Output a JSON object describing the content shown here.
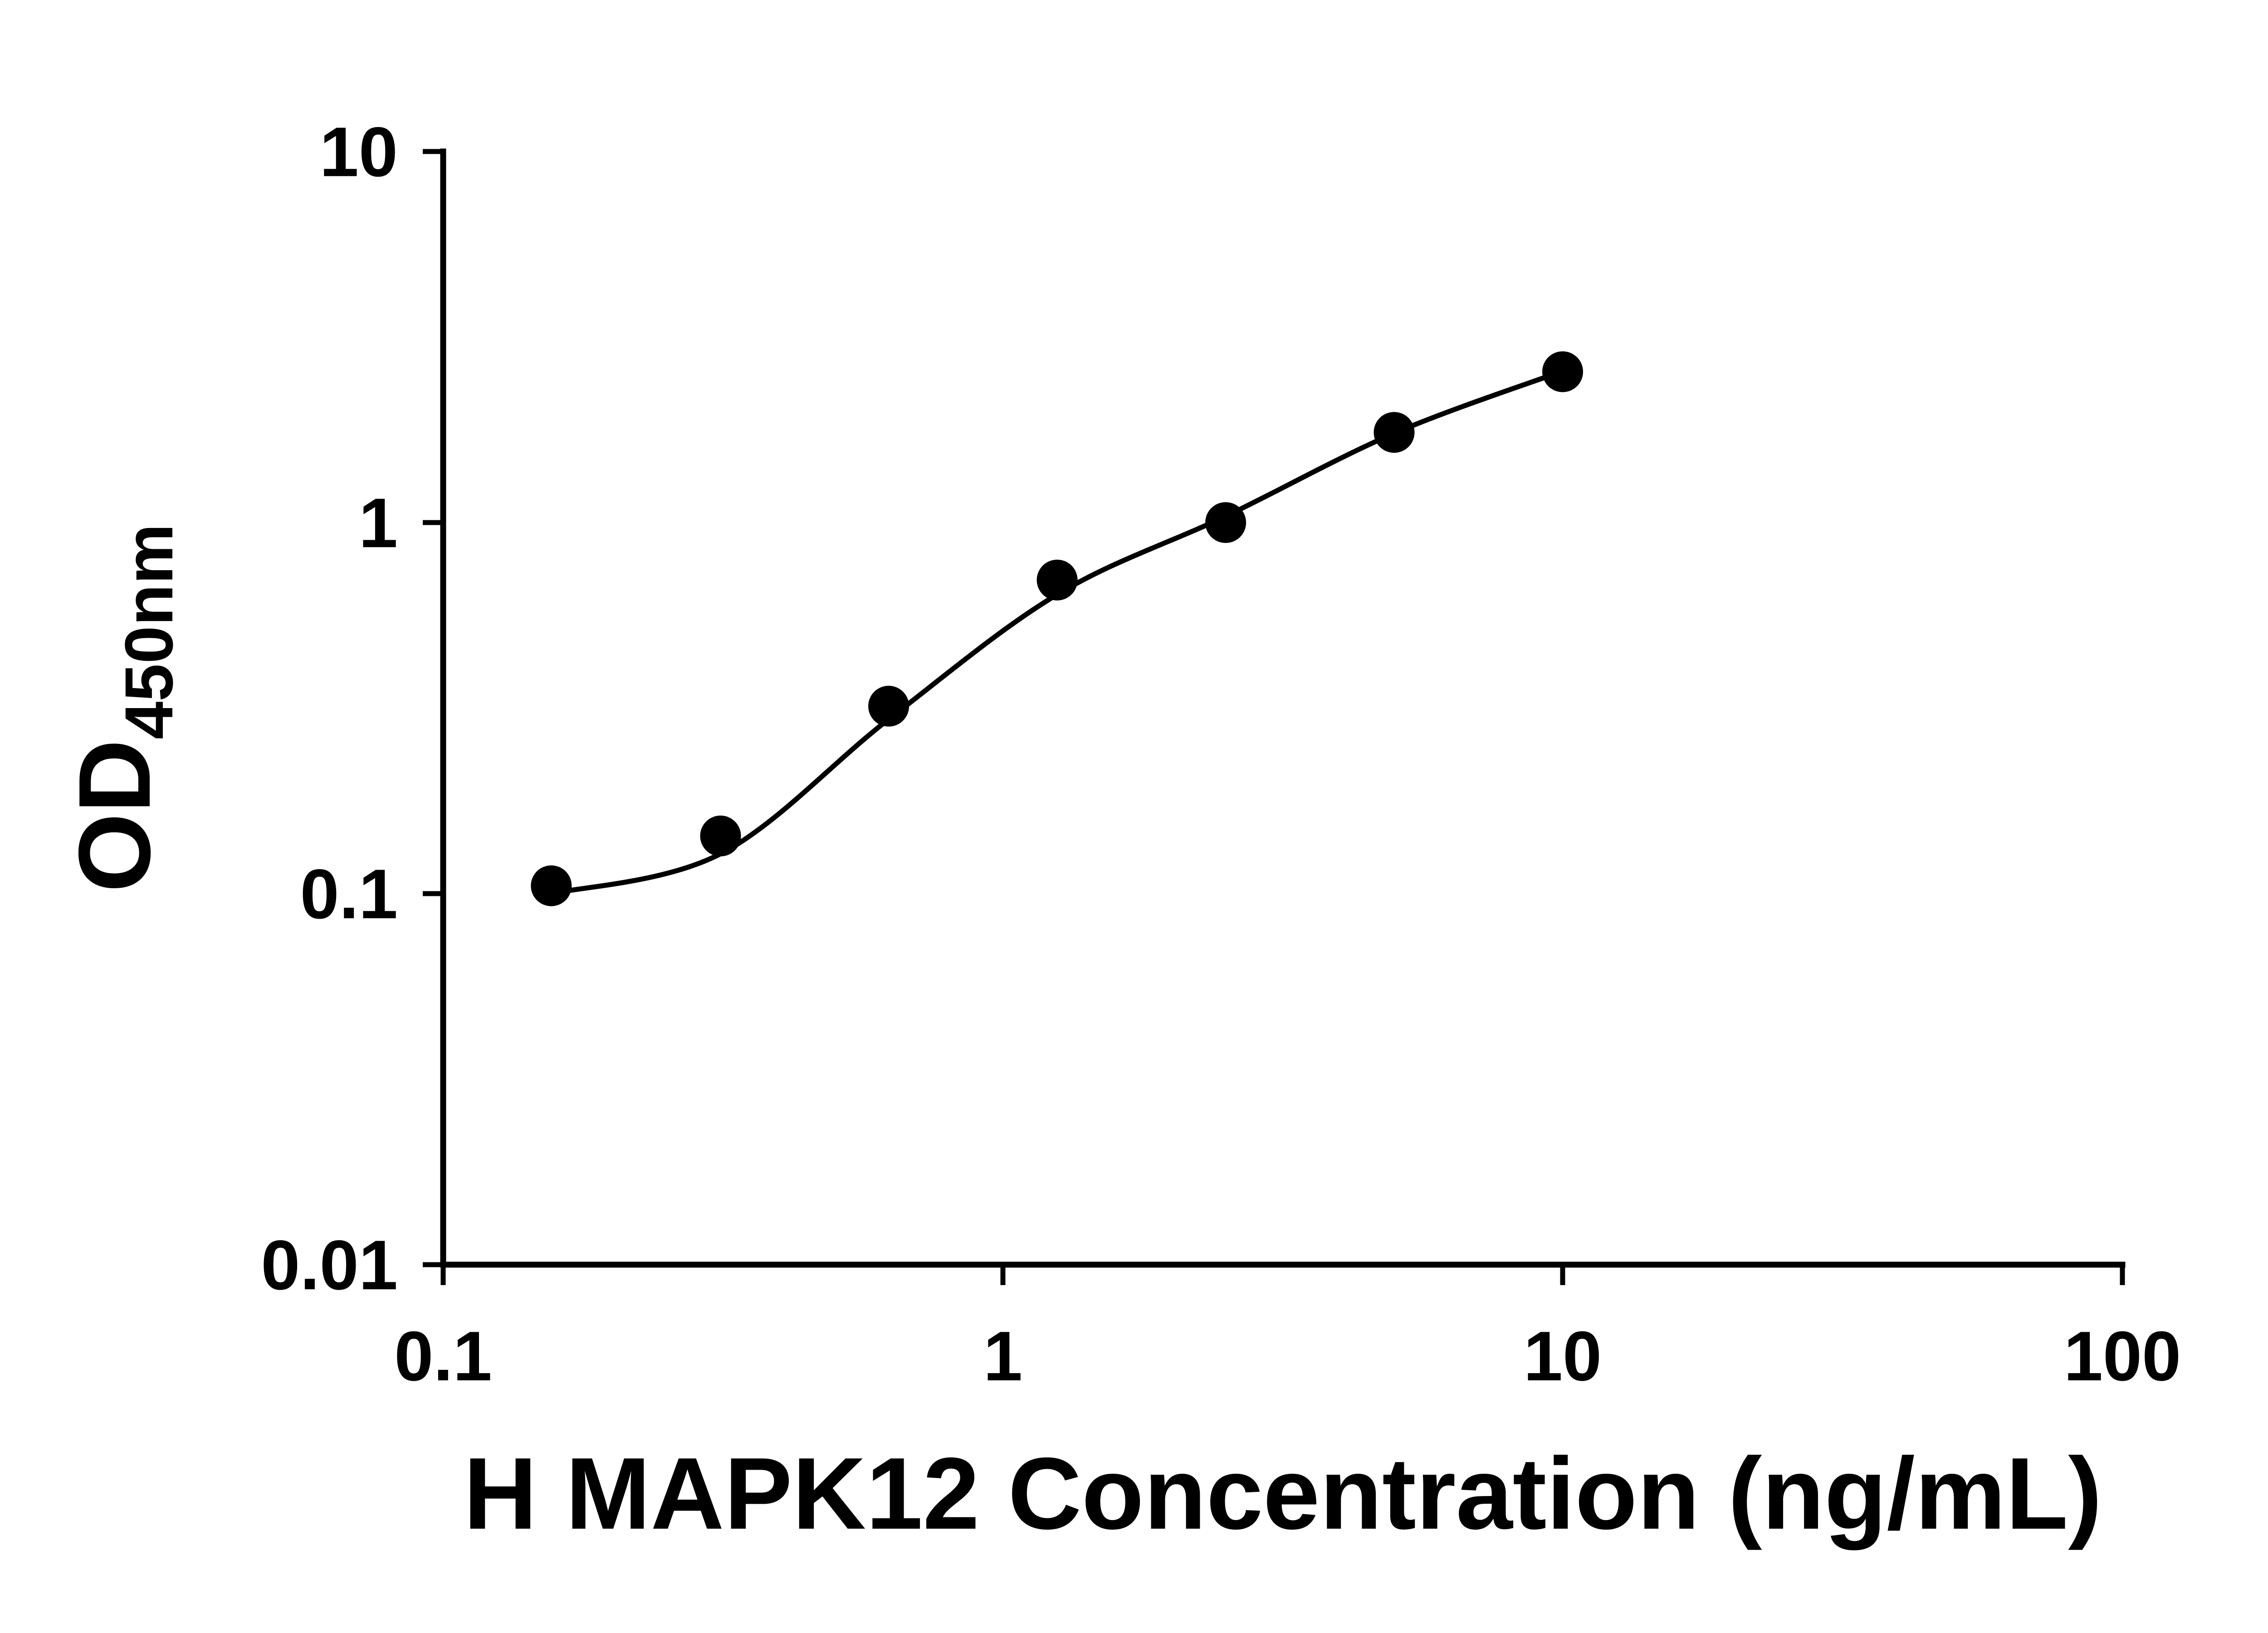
{
  "chart_data": {
    "type": "scatter",
    "title": "",
    "xlabel": "H MAPK12 Concentration (ng/mL)",
    "ylabel_main": "OD",
    "ylabel_sub": "450nm",
    "x_scale": "log",
    "y_scale": "log",
    "xlim": [
      0.1,
      100
    ],
    "ylim": [
      0.01,
      10
    ],
    "grid": false,
    "legend": "none",
    "x_ticks": [
      {
        "value": 0.1,
        "label": "0.1"
      },
      {
        "value": 1,
        "label": "1"
      },
      {
        "value": 10,
        "label": "10"
      },
      {
        "value": 100,
        "label": "100"
      }
    ],
    "y_ticks": [
      {
        "value": 0.01,
        "label": "0.01"
      },
      {
        "value": 0.1,
        "label": "0.1"
      },
      {
        "value": 1,
        "label": "1"
      },
      {
        "value": 10,
        "label": "10"
      }
    ],
    "points": [
      {
        "x": 0.156,
        "y": 0.105
      },
      {
        "x": 0.313,
        "y": 0.143
      },
      {
        "x": 0.625,
        "y": 0.32
      },
      {
        "x": 1.25,
        "y": 0.7
      },
      {
        "x": 2.5,
        "y": 1.0
      },
      {
        "x": 5,
        "y": 1.75
      },
      {
        "x": 10,
        "y": 2.55
      }
    ],
    "fit_curve": [
      {
        "x": 0.156,
        "y": 0.1
      },
      {
        "x": 0.313,
        "y": 0.128
      },
      {
        "x": 0.625,
        "y": 0.295
      },
      {
        "x": 1.25,
        "y": 0.64
      },
      {
        "x": 2.5,
        "y": 1.04
      },
      {
        "x": 5,
        "y": 1.74
      },
      {
        "x": 10,
        "y": 2.56
      }
    ],
    "colors": {
      "axis": "#000000",
      "marker": "#000000",
      "curve": "#000000",
      "background": "#ffffff"
    }
  }
}
